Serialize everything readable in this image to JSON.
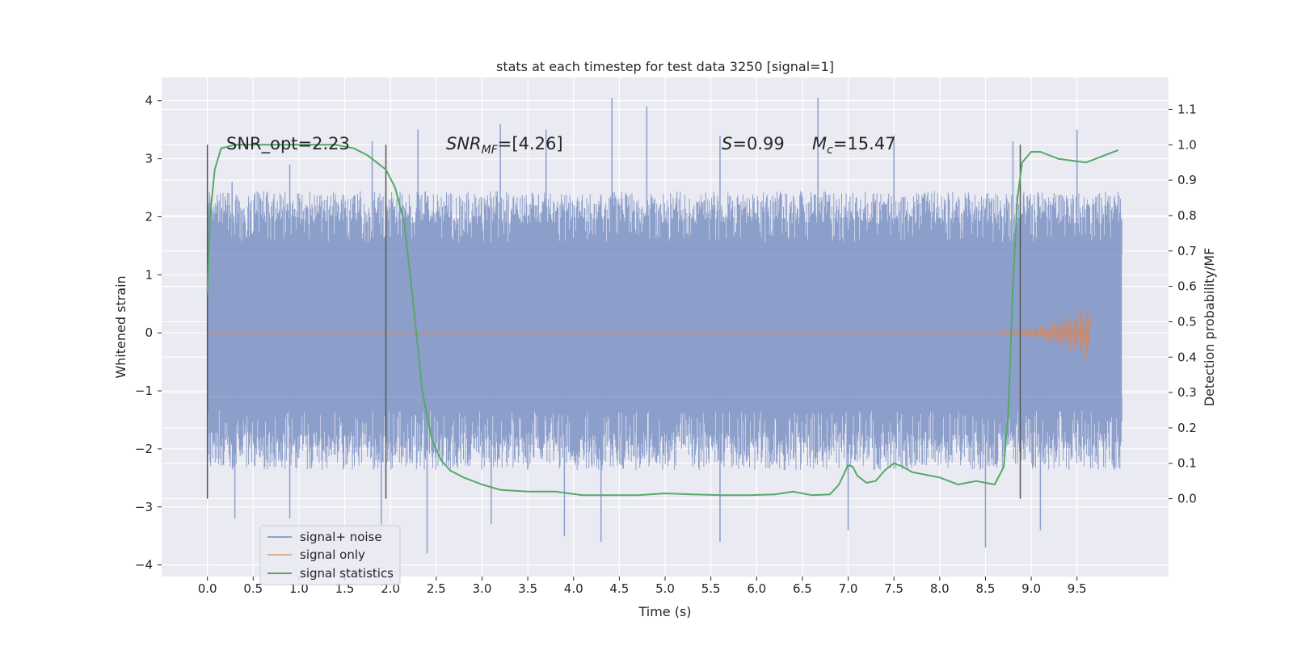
{
  "chart_data": {
    "type": "line",
    "title": "stats at each timestep for test data 3250 [signal=1]",
    "xlabel": "Time (s)",
    "ylabel": "Whitened strain",
    "y2label": "Detection probability/MF",
    "xlim": [
      -0.5,
      10.5
    ],
    "ylim": [
      -4.2,
      4.4
    ],
    "y2lim": [
      -0.22,
      1.19
    ],
    "x_ticks": [
      "0.0",
      "0.5",
      "1.0",
      "1.5",
      "2.0",
      "2.5",
      "3.0",
      "3.5",
      "4.0",
      "4.5",
      "5.0",
      "5.5",
      "6.0",
      "6.5",
      "7.0",
      "7.5",
      "8.0",
      "8.5",
      "9.0",
      "9.5"
    ],
    "y_ticks": [
      "4",
      "3",
      "2",
      "1",
      "0",
      "−1",
      "−2",
      "−3",
      "−4"
    ],
    "y2_ticks": [
      "1.1",
      "1.0",
      "0.9",
      "0.8",
      "0.7",
      "0.6",
      "0.5",
      "0.4",
      "0.3",
      "0.2",
      "0.1",
      "0.0"
    ],
    "grid": true,
    "legend_position": "lower-left",
    "annotations": {
      "snr_opt": "SNR_opt=2.23",
      "snr_mf_main": "SNR",
      "snr_mf_sub": "MF",
      "snr_mf_value": "=[4.26]",
      "s_label": "S",
      "s_value": "=0.99",
      "mc_main": "M",
      "mc_sub": "c",
      "mc_value": "=15.47"
    },
    "vertical_markers": [
      0.0,
      1.95,
      8.88
    ],
    "series": [
      {
        "name": "signal+ noise",
        "color": "#8c9fcb",
        "x_range": [
          0.0,
          9.99
        ],
        "core_band": [
          -1.1,
          1.35
        ],
        "envelope_upper_typical": 2.3,
        "envelope_lower_typical": -2.2,
        "peaks_upper": [
          [
            0.27,
            2.6
          ],
          [
            0.9,
            2.9
          ],
          [
            1.8,
            3.3
          ],
          [
            2.3,
            3.5
          ],
          [
            3.2,
            3.6
          ],
          [
            3.7,
            3.5
          ],
          [
            4.42,
            4.05
          ],
          [
            4.8,
            3.9
          ],
          [
            5.6,
            3.4
          ],
          [
            6.67,
            4.05
          ],
          [
            7.5,
            3.4
          ],
          [
            8.8,
            3.3
          ],
          [
            9.5,
            3.5
          ]
        ],
        "peaks_lower": [
          [
            0.3,
            -3.2
          ],
          [
            0.9,
            -3.2
          ],
          [
            1.9,
            -3.3
          ],
          [
            2.4,
            -3.8
          ],
          [
            3.1,
            -3.3
          ],
          [
            3.9,
            -3.5
          ],
          [
            4.3,
            -3.6
          ],
          [
            5.6,
            -3.6
          ],
          [
            7.0,
            -3.4
          ],
          [
            8.5,
            -3.7
          ],
          [
            9.1,
            -3.4
          ]
        ]
      },
      {
        "name": "signal only",
        "color": "#dd8452",
        "x_range": [
          0.0,
          9.65
        ],
        "chirp_start": 8.2,
        "chirp_peak_amp": 0.5
      },
      {
        "name": "signal statistics",
        "color": "#55a868",
        "axis": "right",
        "x": [
          0.0,
          0.03,
          0.08,
          0.15,
          0.3,
          0.6,
          1.0,
          1.4,
          1.6,
          1.75,
          1.85,
          1.95,
          2.05,
          2.15,
          2.25,
          2.35,
          2.45,
          2.55,
          2.65,
          2.8,
          3.0,
          3.2,
          3.5,
          3.8,
          4.1,
          4.4,
          4.7,
          5.0,
          5.3,
          5.6,
          5.9,
          6.2,
          6.4,
          6.6,
          6.8,
          6.9,
          7.0,
          7.05,
          7.1,
          7.2,
          7.3,
          7.4,
          7.5,
          7.6,
          7.7,
          7.8,
          8.0,
          8.2,
          8.4,
          8.5,
          8.6,
          8.7,
          8.75,
          8.8,
          8.85,
          8.9,
          9.0,
          9.1,
          9.3,
          9.6,
          9.8,
          9.95
        ],
        "y": [
          0.58,
          0.8,
          0.93,
          0.99,
          1.0,
          1.0,
          1.0,
          1.0,
          0.99,
          0.97,
          0.95,
          0.93,
          0.88,
          0.78,
          0.55,
          0.3,
          0.17,
          0.11,
          0.08,
          0.06,
          0.04,
          0.025,
          0.02,
          0.02,
          0.01,
          0.01,
          0.01,
          0.015,
          0.012,
          0.01,
          0.01,
          0.012,
          0.02,
          0.01,
          0.012,
          0.04,
          0.095,
          0.09,
          0.065,
          0.045,
          0.05,
          0.08,
          0.1,
          0.09,
          0.075,
          0.07,
          0.06,
          0.04,
          0.05,
          0.045,
          0.04,
          0.09,
          0.25,
          0.6,
          0.85,
          0.95,
          0.98,
          0.98,
          0.96,
          0.95,
          0.97,
          0.985
        ]
      }
    ]
  }
}
